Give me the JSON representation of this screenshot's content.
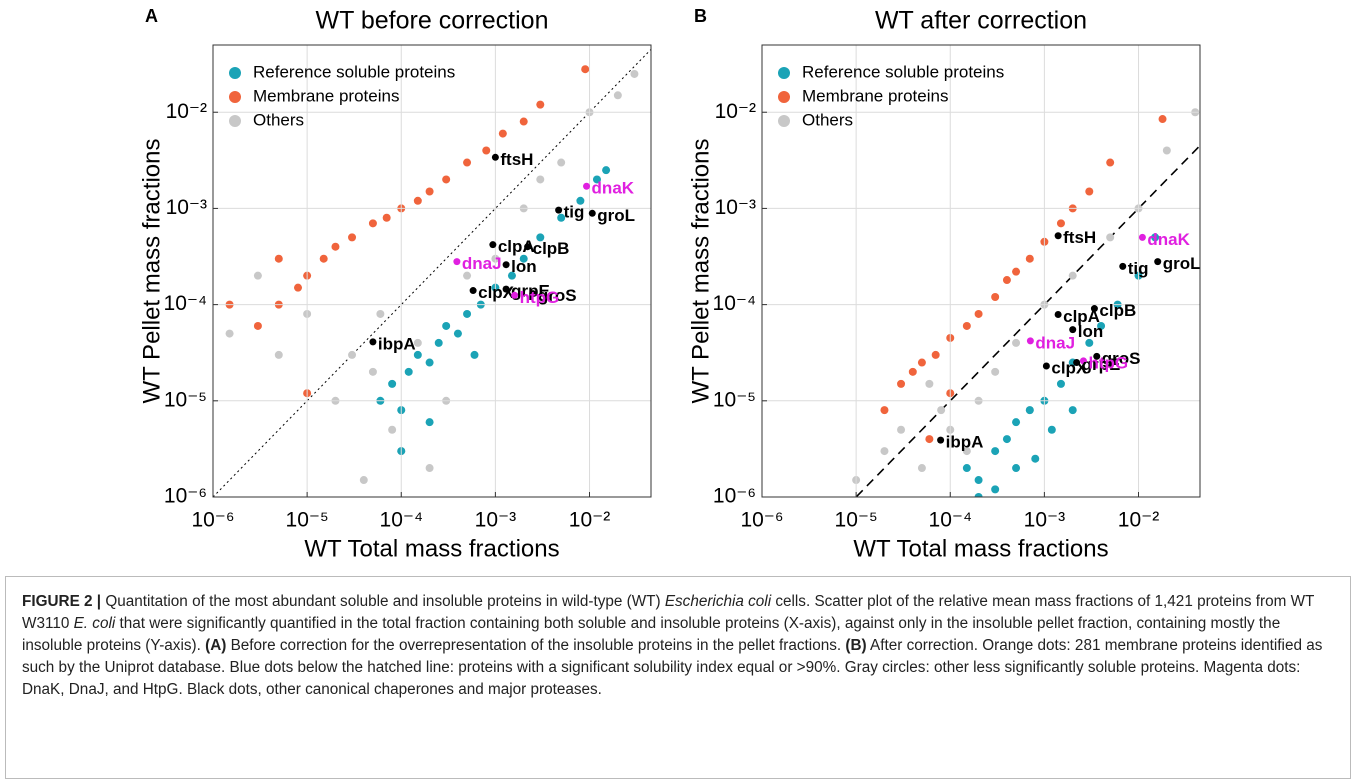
{
  "chart_data": [
    {
      "type": "scatter",
      "panel_label": "A",
      "title": "WT before correction",
      "xlabel": "WT Total mass fractions",
      "ylabel": "WT Pellet mass fractions",
      "log_x": true,
      "log_y": true,
      "grid": true,
      "legend": "upper left",
      "xlim": [
        1e-06,
        0.045
      ],
      "ylim": [
        1e-06,
        0.05
      ],
      "xticks": [
        {
          "value": 1e-06,
          "label": "10⁻⁶"
        },
        {
          "value": 1e-05,
          "label": "10⁻⁵"
        },
        {
          "value": 0.0001,
          "label": "10⁻⁴"
        },
        {
          "value": 0.001,
          "label": "10⁻³"
        },
        {
          "value": 0.01,
          "label": "10⁻²"
        }
      ],
      "yticks": [
        {
          "value": 1e-06,
          "label": "10⁻⁶"
        },
        {
          "value": 1e-05,
          "label": "10⁻⁵"
        },
        {
          "value": 0.0001,
          "label": "10⁻⁴"
        },
        {
          "value": 0.001,
          "label": "10⁻³"
        },
        {
          "value": 0.01,
          "label": "10⁻²"
        }
      ],
      "reference_line": {
        "ratio": 1,
        "style": "dotted"
      },
      "series": [
        {
          "name": "Reference soluble proteins",
          "color": "#1ba3b6",
          "x": [
            6e-05,
            8e-05,
            0.0001,
            0.00012,
            0.00015,
            0.0002,
            0.00025,
            0.0003,
            0.0004,
            0.0005,
            0.0007,
            0.001,
            0.0015,
            0.002,
            0.003,
            0.005,
            0.008,
            0.012,
            0.015,
            0.0002,
            0.0001,
            0.0006
          ],
          "y": [
            1e-05,
            1.5e-05,
            8e-06,
            2e-05,
            3e-05,
            2.5e-05,
            4e-05,
            6e-05,
            5e-05,
            8e-05,
            0.0001,
            0.00015,
            0.0002,
            0.0003,
            0.0005,
            0.0008,
            0.0012,
            0.002,
            0.0025,
            6e-06,
            3e-06,
            3e-05
          ]
        },
        {
          "name": "Membrane proteins",
          "color": "#f0643c",
          "x": [
            1.5e-06,
            3e-06,
            5e-06,
            8e-06,
            1e-05,
            1.5e-05,
            2e-05,
            3e-05,
            5e-05,
            7e-05,
            0.0001,
            0.00015,
            0.0002,
            0.0003,
            0.0005,
            0.0008,
            0.0012,
            0.002,
            0.003,
            0.009,
            1e-05,
            5e-06
          ],
          "y": [
            0.0001,
            6e-05,
            0.0001,
            0.00015,
            0.0002,
            0.0003,
            0.0004,
            0.0005,
            0.0007,
            0.0008,
            0.001,
            0.0012,
            0.0015,
            0.002,
            0.003,
            0.004,
            0.006,
            0.008,
            0.012,
            0.028,
            1.2e-05,
            0.0003
          ]
        },
        {
          "name": "Others",
          "color": "#c8c8c8",
          "x": [
            1.5e-06,
            3e-06,
            5e-06,
            1e-05,
            2e-05,
            3e-05,
            5e-05,
            8e-05,
            0.0001,
            0.0002,
            0.0003,
            0.0005,
            0.001,
            0.002,
            0.005,
            0.01,
            0.02,
            0.03,
            4e-05,
            6e-05,
            0.00015,
            0.003
          ],
          "y": [
            5e-05,
            0.0002,
            3e-05,
            8e-05,
            1e-05,
            3e-05,
            2e-05,
            5e-06,
            3e-06,
            2e-06,
            1e-05,
            0.0002,
            0.0003,
            0.001,
            0.003,
            0.01,
            0.015,
            0.025,
            1.5e-06,
            8e-05,
            4e-05,
            0.002
          ]
        }
      ],
      "annotations": [
        {
          "text": "ftsH",
          "x": 0.001,
          "y": 0.0034,
          "color": "#000000"
        },
        {
          "text": "dnaK",
          "x": 0.0093,
          "y": 0.0017,
          "color": "#e020e0"
        },
        {
          "text": "tig",
          "x": 0.0047,
          "y": 0.00096,
          "color": "#000000"
        },
        {
          "text": "groL",
          "x": 0.0107,
          "y": 0.00089,
          "color": "#000000"
        },
        {
          "text": "clpA",
          "x": 0.00094,
          "y": 0.00042,
          "color": "#000000"
        },
        {
          "text": "clpB",
          "x": 0.0022,
          "y": 0.0004,
          "color": "#000000"
        },
        {
          "text": "dnaJ",
          "x": 0.00039,
          "y": 0.00028,
          "color": "#e020e0"
        },
        {
          "text": "lon",
          "x": 0.0013,
          "y": 0.00026,
          "color": "#000000"
        },
        {
          "text": "clpX",
          "x": 0.00058,
          "y": 0.00014,
          "color": "#000000"
        },
        {
          "text": "grpE",
          "x": 0.0013,
          "y": 0.000145,
          "color": "#000000"
        },
        {
          "text": "groS",
          "x": 0.0025,
          "y": 0.00013,
          "color": "#000000"
        },
        {
          "text": "htpG",
          "x": 0.0016,
          "y": 0.000125,
          "color": "#e020e0"
        },
        {
          "text": "ibpA",
          "x": 5e-05,
          "y": 4.1e-05,
          "color": "#000000"
        }
      ]
    },
    {
      "type": "scatter",
      "panel_label": "B",
      "title": "WT after correction",
      "xlabel": "WT Total mass fractions",
      "ylabel": "WT Pellet mass fractions",
      "log_x": true,
      "log_y": true,
      "grid": true,
      "legend": "upper left",
      "xlim": [
        1e-06,
        0.045
      ],
      "ylim": [
        1e-06,
        0.05
      ],
      "xticks": [
        {
          "value": 1e-06,
          "label": "10⁻⁶"
        },
        {
          "value": 1e-05,
          "label": "10⁻⁵"
        },
        {
          "value": 0.0001,
          "label": "10⁻⁴"
        },
        {
          "value": 0.001,
          "label": "10⁻³"
        },
        {
          "value": 0.01,
          "label": "10⁻²"
        }
      ],
      "yticks": [
        {
          "value": 1e-06,
          "label": "10⁻⁶"
        },
        {
          "value": 1e-05,
          "label": "10⁻⁵"
        },
        {
          "value": 0.0001,
          "label": "10⁻⁴"
        },
        {
          "value": 0.001,
          "label": "10⁻³"
        },
        {
          "value": 0.01,
          "label": "10⁻²"
        }
      ],
      "reference_line": {
        "ratio": 0.1,
        "style": "dashed"
      },
      "series": [
        {
          "name": "Reference soluble proteins",
          "color": "#1ba3b6",
          "x": [
            0.00015,
            0.0002,
            0.0003,
            0.0004,
            0.0005,
            0.0007,
            0.001,
            0.0015,
            0.002,
            0.003,
            0.004,
            0.006,
            0.01,
            0.015,
            0.0002,
            0.0003,
            0.0005,
            0.0008,
            0.0012,
            0.002
          ],
          "y": [
            2e-06,
            1.5e-06,
            3e-06,
            4e-06,
            6e-06,
            8e-06,
            1e-05,
            1.5e-05,
            2.5e-05,
            4e-05,
            6e-05,
            0.0001,
            0.0002,
            0.0005,
            1e-06,
            1.2e-06,
            2e-06,
            2.5e-06,
            5e-06,
            8e-06
          ]
        },
        {
          "name": "Membrane proteins",
          "color": "#f0643c",
          "x": [
            2e-05,
            3e-05,
            4e-05,
            5e-05,
            7e-05,
            0.0001,
            0.00015,
            0.0002,
            0.0003,
            0.0004,
            0.0005,
            0.0007,
            0.001,
            0.0015,
            0.002,
            0.003,
            0.005,
            0.018,
            0.0001,
            6e-05
          ],
          "y": [
            8e-06,
            1.5e-05,
            2e-05,
            2.5e-05,
            3e-05,
            4.5e-05,
            6e-05,
            8e-05,
            0.00012,
            0.00018,
            0.00022,
            0.0003,
            0.00045,
            0.0007,
            0.001,
            0.0015,
            0.003,
            0.0085,
            1.2e-05,
            4e-06
          ]
        },
        {
          "name": "Others",
          "color": "#c8c8c8",
          "x": [
            1e-05,
            2e-05,
            3e-05,
            5e-05,
            8e-05,
            0.0001,
            0.0002,
            0.0003,
            0.0005,
            0.001,
            0.002,
            0.005,
            0.01,
            0.02,
            0.04,
            6e-05,
            0.00015,
            0.0007
          ],
          "y": [
            1.5e-06,
            3e-06,
            5e-06,
            2e-06,
            8e-06,
            5e-06,
            1e-05,
            2e-05,
            4e-05,
            0.0001,
            0.0002,
            0.0005,
            0.001,
            0.004,
            0.01,
            1.5e-05,
            3e-06,
            8e-06
          ]
        }
      ],
      "annotations": [
        {
          "text": "ftsH",
          "x": 0.0014,
          "y": 0.00052,
          "color": "#000000"
        },
        {
          "text": "dnaK",
          "x": 0.011,
          "y": 0.0005,
          "color": "#e020e0"
        },
        {
          "text": "tig",
          "x": 0.0068,
          "y": 0.00025,
          "color": "#000000"
        },
        {
          "text": "groL",
          "x": 0.016,
          "y": 0.00028,
          "color": "#000000"
        },
        {
          "text": "clpA",
          "x": 0.0014,
          "y": 7.9e-05,
          "color": "#000000"
        },
        {
          "text": "clpB",
          "x": 0.0034,
          "y": 9.1e-05,
          "color": "#000000"
        },
        {
          "text": "lon",
          "x": 0.002,
          "y": 5.5e-05,
          "color": "#000000"
        },
        {
          "text": "dnaJ",
          "x": 0.00071,
          "y": 4.2e-05,
          "color": "#e020e0"
        },
        {
          "text": "grpE",
          "x": 0.0022,
          "y": 2.5e-05,
          "color": "#000000"
        },
        {
          "text": "groS",
          "x": 0.0036,
          "y": 2.9e-05,
          "color": "#000000"
        },
        {
          "text": "htpG",
          "x": 0.0026,
          "y": 2.6e-05,
          "color": "#e020e0"
        },
        {
          "text": "clpX",
          "x": 0.00105,
          "y": 2.3e-05,
          "color": "#000000"
        },
        {
          "text": "ibpA",
          "x": 7.9e-05,
          "y": 3.9e-06,
          "color": "#000000"
        }
      ]
    }
  ],
  "caption": {
    "runs": [
      {
        "text": "FIGURE 2 |",
        "style": "bold"
      },
      {
        "text": " Quantitation of the most abundant soluble and insoluble proteins in wild-type (WT) ",
        "style": "normal"
      },
      {
        "text": "Escherichia coli",
        "style": "italic"
      },
      {
        "text": " cells. Scatter plot of the relative mean mass fractions of 1,421 proteins from WT W3110 ",
        "style": "normal"
      },
      {
        "text": "E. coli",
        "style": "italic"
      },
      {
        "text": " that were significantly quantified in the total fraction containing both soluble and insoluble proteins (X-axis), against only in the insoluble pellet fraction, containing mostly the insoluble proteins (Y-axis). ",
        "style": "normal"
      },
      {
        "text": "(A)",
        "style": "bold"
      },
      {
        "text": " Before correction for the overrepresentation of the insoluble proteins in the pellet fractions. ",
        "style": "normal"
      },
      {
        "text": "(B)",
        "style": "bold"
      },
      {
        "text": " After correction. Orange dots: 281 membrane proteins identified as such by the Uniprot database. Blue dots below the hatched line: proteins with a significant solubility index equal or >90%. Gray circles: other less significantly soluble proteins. Magenta dots: DnaK, DnaJ, and HtpG. Black dots, other canonical chaperones and major proteases.",
        "style": "normal"
      }
    ]
  }
}
